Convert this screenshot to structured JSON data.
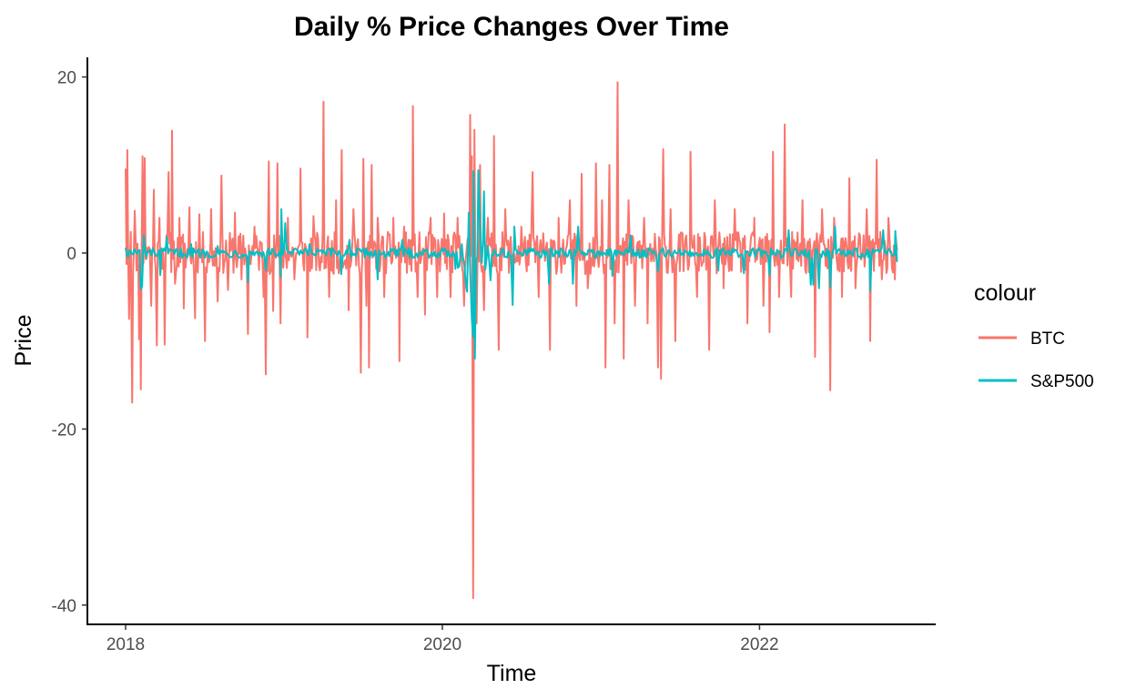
{
  "chart_data": {
    "type": "line",
    "title": "Daily % Price Changes Over Time",
    "xlabel": "Time",
    "ylabel": "Price",
    "x_range": [
      "2018-01-01",
      "2022-11-15"
    ],
    "x_ticks": [
      {
        "date": "2018-01-01",
        "label": "2018"
      },
      {
        "date": "2020-01-01",
        "label": "2020"
      },
      {
        "date": "2022-01-01",
        "label": "2022"
      }
    ],
    "ylim": [
      -41,
      22
    ],
    "y_ticks": [
      20,
      0,
      -20,
      -40
    ],
    "grid": false,
    "legend": {
      "title": "colour",
      "placement": "right"
    },
    "series": [
      {
        "name": "BTC",
        "color": "#F8766D",
        "points": [
          [
            "2018-01-01",
            9.6
          ],
          [
            "2018-01-05",
            11.7
          ],
          [
            "2018-01-09",
            -7.5
          ],
          [
            "2018-01-13",
            2.4
          ],
          [
            "2018-01-16",
            -17.0
          ],
          [
            "2018-01-22",
            4.8
          ],
          [
            "2018-02-01",
            -9.8
          ],
          [
            "2018-02-05",
            -15.5
          ],
          [
            "2018-02-09",
            11.0
          ],
          [
            "2018-02-14",
            10.8
          ],
          [
            "2018-02-20",
            0.6
          ],
          [
            "2018-03-01",
            -6.0
          ],
          [
            "2018-03-07",
            7.2
          ],
          [
            "2018-03-14",
            -10.5
          ],
          [
            "2018-03-20",
            4.0
          ],
          [
            "2018-04-01",
            -10.4
          ],
          [
            "2018-04-10",
            9.2
          ],
          [
            "2018-04-18",
            13.9
          ],
          [
            "2018-04-25",
            -3.5
          ],
          [
            "2018-05-05",
            4.0
          ],
          [
            "2018-05-15",
            -6.3
          ],
          [
            "2018-05-28",
            5.2
          ],
          [
            "2018-06-10",
            -7.4
          ],
          [
            "2018-06-20",
            4.4
          ],
          [
            "2018-07-03",
            -10.0
          ],
          [
            "2018-07-17",
            5.0
          ],
          [
            "2018-08-01",
            -5.5
          ],
          [
            "2018-08-10",
            8.8
          ],
          [
            "2018-08-25",
            -4.2
          ],
          [
            "2018-09-10",
            4.6
          ],
          [
            "2018-09-25",
            -3.0
          ],
          [
            "2018-10-10",
            -9.2
          ],
          [
            "2018-10-25",
            3.0
          ],
          [
            "2018-11-15",
            -5.0
          ],
          [
            "2018-11-20",
            -13.8
          ],
          [
            "2018-11-27",
            10.4
          ],
          [
            "2018-12-07",
            -6.6
          ],
          [
            "2018-12-17",
            10.2
          ],
          [
            "2018-12-24",
            -8.0
          ],
          [
            "2019-01-10",
            4.0
          ],
          [
            "2019-01-25",
            -3.0
          ],
          [
            "2019-02-08",
            9.6
          ],
          [
            "2019-02-24",
            -9.6
          ],
          [
            "2019-03-10",
            4.2
          ],
          [
            "2019-03-25",
            -2.0
          ],
          [
            "2019-04-02",
            17.2
          ],
          [
            "2019-04-15",
            -5.0
          ],
          [
            "2019-05-01",
            6.0
          ],
          [
            "2019-05-14",
            11.7
          ],
          [
            "2019-05-30",
            -6.5
          ],
          [
            "2019-06-10",
            5.0
          ],
          [
            "2019-06-27",
            -13.6
          ],
          [
            "2019-07-03",
            10.7
          ],
          [
            "2019-07-10",
            -6.0
          ],
          [
            "2019-07-16",
            -13.0
          ],
          [
            "2019-07-22",
            10.0
          ],
          [
            "2019-08-05",
            4.0
          ],
          [
            "2019-08-20",
            -5.0
          ],
          [
            "2019-09-10",
            4.0
          ],
          [
            "2019-09-24",
            -12.3
          ],
          [
            "2019-10-05",
            3.0
          ],
          [
            "2019-10-25",
            16.7
          ],
          [
            "2019-11-05",
            -5.0
          ],
          [
            "2019-11-22",
            -7.0
          ],
          [
            "2019-12-05",
            4.0
          ],
          [
            "2019-12-20",
            -5.0
          ],
          [
            "2020-01-05",
            4.5
          ],
          [
            "2020-01-20",
            -5.0
          ],
          [
            "2020-02-05",
            4.0
          ],
          [
            "2020-02-20",
            -6.0
          ],
          [
            "2020-03-05",
            15.7
          ],
          [
            "2020-03-09",
            11.0
          ],
          [
            "2020-03-12",
            -39.2
          ],
          [
            "2020-03-15",
            14.0
          ],
          [
            "2020-03-20",
            -8.0
          ],
          [
            "2020-03-28",
            10.0
          ],
          [
            "2020-04-06",
            -6.5
          ],
          [
            "2020-04-15",
            4.0
          ],
          [
            "2020-04-29",
            13.3
          ],
          [
            "2020-05-10",
            -11.0
          ],
          [
            "2020-05-25",
            5.0
          ],
          [
            "2020-06-10",
            -4.0
          ],
          [
            "2020-07-01",
            3.0
          ],
          [
            "2020-07-27",
            9.2
          ],
          [
            "2020-08-10",
            -5.0
          ],
          [
            "2020-09-05",
            -11.0
          ],
          [
            "2020-09-25",
            4.0
          ],
          [
            "2020-10-21",
            6.0
          ],
          [
            "2020-11-05",
            -6.0
          ],
          [
            "2020-11-17",
            9.0
          ],
          [
            "2020-12-01",
            -4.0
          ],
          [
            "2020-12-20",
            10.2
          ],
          [
            "2021-01-03",
            6.0
          ],
          [
            "2021-01-11",
            -13.0
          ],
          [
            "2021-01-20",
            10.0
          ],
          [
            "2021-02-01",
            -8.0
          ],
          [
            "2021-02-08",
            19.4
          ],
          [
            "2021-02-22",
            -12.0
          ],
          [
            "2021-03-05",
            6.0
          ],
          [
            "2021-03-20",
            -6.0
          ],
          [
            "2021-04-10",
            4.0
          ],
          [
            "2021-04-18",
            -8.0
          ],
          [
            "2021-05-12",
            -13.0
          ],
          [
            "2021-05-19",
            -14.3
          ],
          [
            "2021-05-24",
            11.8
          ],
          [
            "2021-06-10",
            5.0
          ],
          [
            "2021-06-21",
            -10.0
          ],
          [
            "2021-07-26",
            11.5
          ],
          [
            "2021-08-10",
            -5.0
          ],
          [
            "2021-09-07",
            -11.0
          ],
          [
            "2021-09-20",
            6.0
          ],
          [
            "2021-10-10",
            -4.0
          ],
          [
            "2021-11-05",
            5.0
          ],
          [
            "2021-12-04",
            -8.0
          ],
          [
            "2021-12-20",
            4.0
          ],
          [
            "2022-01-10",
            -6.0
          ],
          [
            "2022-01-24",
            -9.0
          ],
          [
            "2022-02-01",
            11.5
          ],
          [
            "2022-02-15",
            -5.0
          ],
          [
            "2022-02-28",
            14.6
          ],
          [
            "2022-03-15",
            -5.0
          ],
          [
            "2022-04-10",
            6.0
          ],
          [
            "2022-05-09",
            -11.8
          ],
          [
            "2022-05-25",
            5.0
          ],
          [
            "2022-06-13",
            -15.6
          ],
          [
            "2022-06-22",
            4.0
          ],
          [
            "2022-07-10",
            -5.0
          ],
          [
            "2022-07-27",
            8.5
          ],
          [
            "2022-08-10",
            -4.0
          ],
          [
            "2022-09-05",
            5.0
          ],
          [
            "2022-09-13",
            -10.0
          ],
          [
            "2022-09-28",
            10.6
          ],
          [
            "2022-10-10",
            -3.0
          ],
          [
            "2022-10-25",
            4.0
          ],
          [
            "2022-11-09",
            -3.0
          ],
          [
            "2022-11-14",
            0.3
          ]
        ]
      },
      {
        "name": "S&P500",
        "color": "#00BFC4",
        "points": [
          [
            "2018-01-01",
            0.6
          ],
          [
            "2018-02-05",
            -4.1
          ],
          [
            "2018-02-08",
            -3.8
          ],
          [
            "2018-02-12",
            2.0
          ],
          [
            "2018-03-22",
            -2.5
          ],
          [
            "2018-04-06",
            1.8
          ],
          [
            "2018-06-01",
            1.0
          ],
          [
            "2018-08-01",
            0.8
          ],
          [
            "2018-10-10",
            -3.3
          ],
          [
            "2018-11-20",
            -2.0
          ],
          [
            "2018-12-24",
            -2.7
          ],
          [
            "2018-12-26",
            5.0
          ],
          [
            "2019-01-04",
            3.4
          ],
          [
            "2019-03-01",
            1.0
          ],
          [
            "2019-05-13",
            -2.4
          ],
          [
            "2019-06-01",
            1.5
          ],
          [
            "2019-08-05",
            -3.0
          ],
          [
            "2019-10-01",
            1.5
          ],
          [
            "2020-01-31",
            -1.8
          ],
          [
            "2020-02-24",
            -3.4
          ],
          [
            "2020-02-27",
            -4.4
          ],
          [
            "2020-03-02",
            4.6
          ],
          [
            "2020-03-09",
            -7.6
          ],
          [
            "2020-03-12",
            -9.5
          ],
          [
            "2020-03-13",
            9.3
          ],
          [
            "2020-03-16",
            -12.0
          ],
          [
            "2020-03-24",
            9.4
          ],
          [
            "2020-03-26",
            6.2
          ],
          [
            "2020-04-06",
            7.0
          ],
          [
            "2020-04-21",
            -3.1
          ],
          [
            "2020-06-11",
            -5.9
          ],
          [
            "2020-06-15",
            3.0
          ],
          [
            "2020-09-03",
            -3.5
          ],
          [
            "2020-10-28",
            -3.5
          ],
          [
            "2020-11-09",
            3.0
          ],
          [
            "2021-01-27",
            -2.6
          ],
          [
            "2021-03-10",
            2.0
          ],
          [
            "2021-05-12",
            -2.1
          ],
          [
            "2021-09-28",
            -2.0
          ],
          [
            "2021-11-26",
            -2.3
          ],
          [
            "2022-01-24",
            -2.5
          ],
          [
            "2022-03-09",
            2.6
          ],
          [
            "2022-04-29",
            -3.6
          ],
          [
            "2022-05-05",
            -3.6
          ],
          [
            "2022-05-18",
            -4.0
          ],
          [
            "2022-06-13",
            -3.9
          ],
          [
            "2022-06-24",
            3.0
          ],
          [
            "2022-09-13",
            -4.3
          ],
          [
            "2022-10-13",
            2.6
          ],
          [
            "2022-11-10",
            2.5
          ],
          [
            "2022-11-14",
            -1.0
          ]
        ]
      }
    ]
  }
}
